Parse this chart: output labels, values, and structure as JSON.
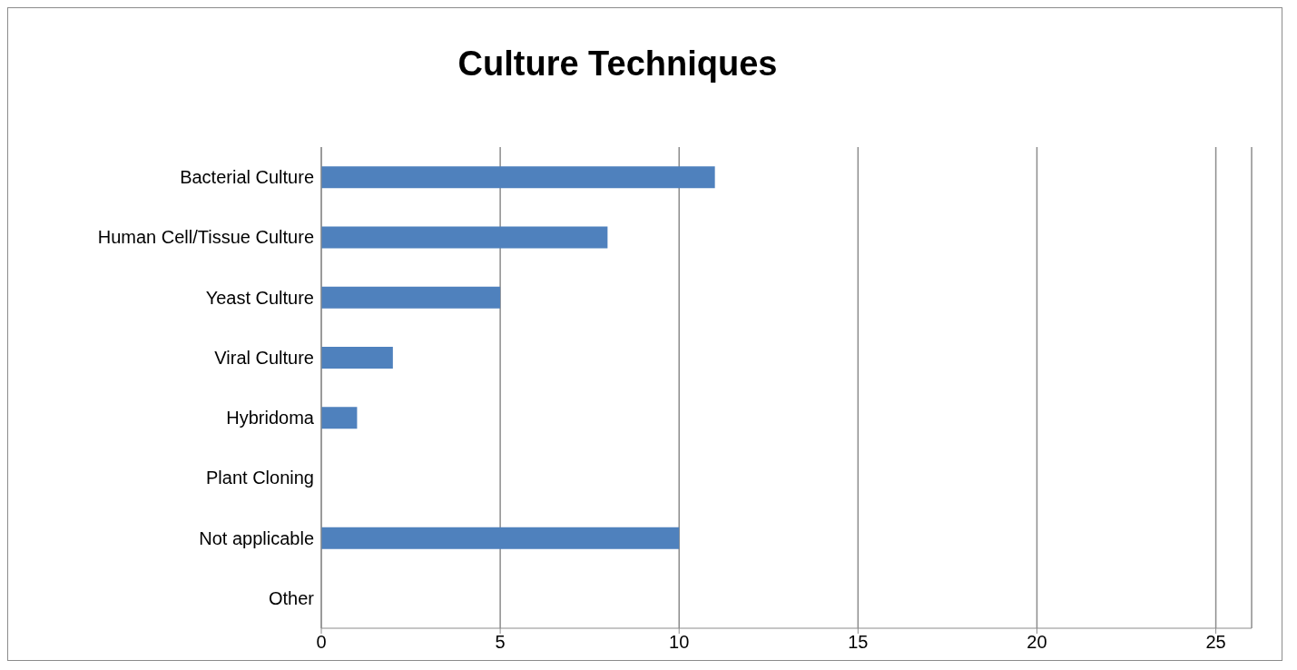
{
  "chart_data": {
    "type": "bar",
    "title": "Culture Techniques",
    "orientation": "horizontal",
    "categories": [
      "Bacterial Culture",
      "Human Cell/Tissue Culture",
      "Yeast Culture",
      "Viral Culture",
      "Hybridoma",
      "Plant Cloning",
      "Not applicable",
      "Other"
    ],
    "values": [
      11,
      8,
      5,
      2,
      1,
      0,
      10,
      0
    ],
    "color": "#4f81bd",
    "xlim": [
      0,
      26
    ],
    "xticks": [
      0,
      5,
      10,
      15,
      20,
      25
    ],
    "grid": "x",
    "legend": false
  }
}
